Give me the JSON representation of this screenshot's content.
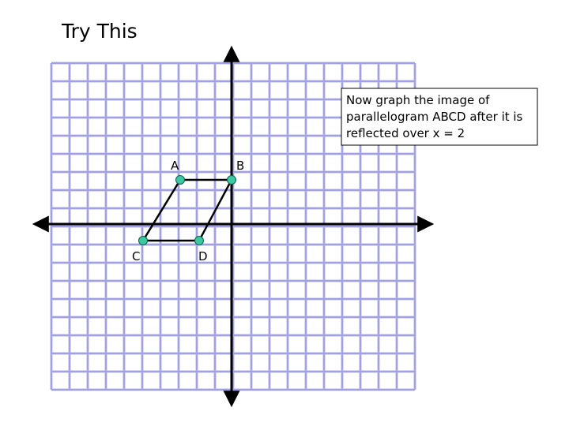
{
  "header": {
    "title": "Try This"
  },
  "note": {
    "lines": [
      "Now graph the image of",
      "parallelogram ABCD after it is",
      "reflected over x = 2"
    ]
  },
  "points": [
    {
      "label": "A"
    },
    {
      "label": "B"
    },
    {
      "label": "C"
    },
    {
      "label": "D"
    }
  ]
}
